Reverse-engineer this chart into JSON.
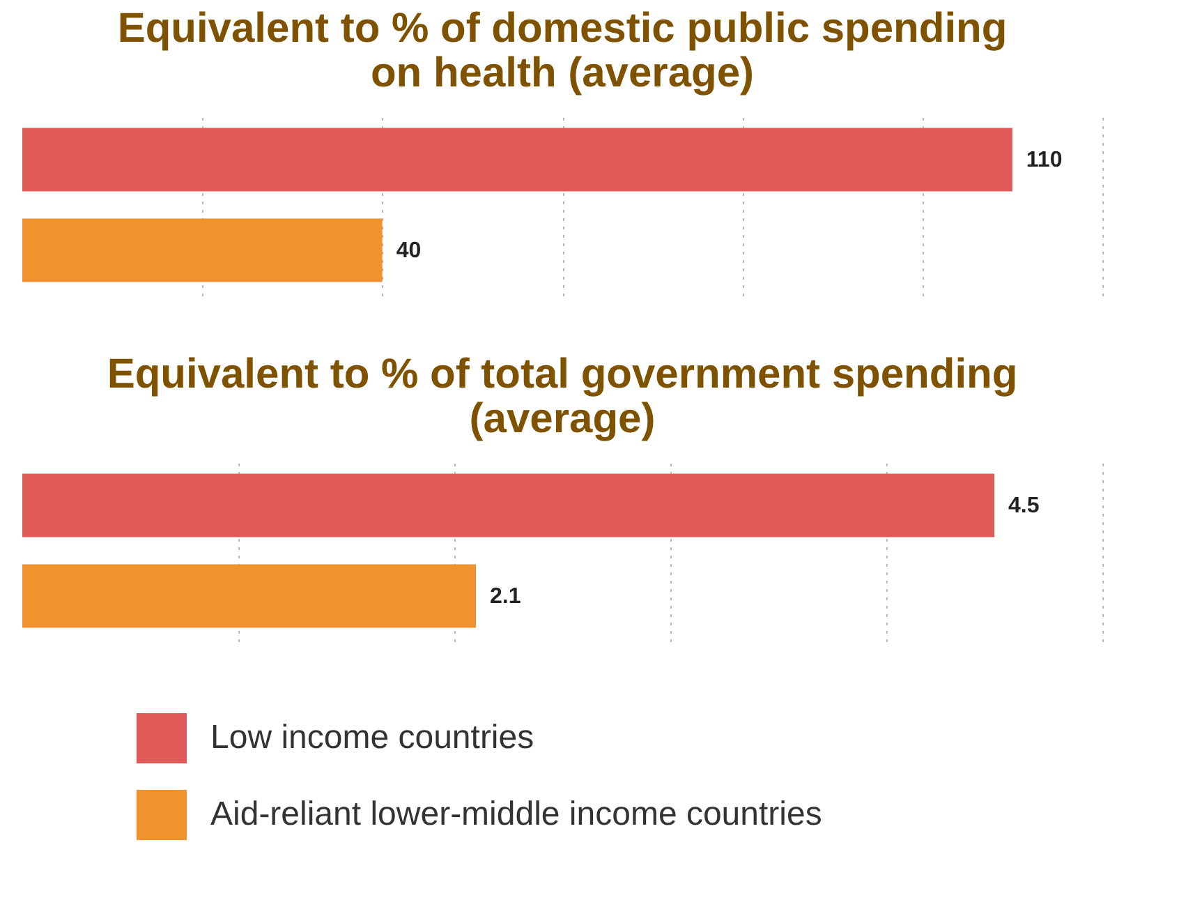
{
  "chart_data": [
    {
      "type": "bar",
      "orientation": "horizontal",
      "title": "Equivalent to % of domestic public spending on health (average)",
      "categories": [
        null
      ],
      "series": [
        {
          "name": "Low income countries",
          "color": "#e05a5a",
          "values": [
            110
          ]
        },
        {
          "name": "Aid-reliant lower-middle income countries",
          "color": "#f0922e",
          "values": [
            40
          ]
        }
      ],
      "xlim": [
        0,
        120
      ],
      "xticks": [
        {
          "value": 20,
          "label": null
        },
        {
          "value": 40,
          "label": null
        },
        {
          "value": 60,
          "label": null
        },
        {
          "value": 80,
          "label": null
        },
        {
          "value": 100,
          "label": null
        },
        {
          "value": 120,
          "label": null
        }
      ],
      "grid": "x",
      "tick_labels": false,
      "data_labels": true,
      "legend": "bottom"
    },
    {
      "type": "bar",
      "orientation": "horizontal",
      "title": "Equivalent to % of total government spending (average)",
      "categories": [
        null
      ],
      "series": [
        {
          "name": "Low income countries",
          "color": "#e05a5a",
          "values": [
            4.5
          ]
        },
        {
          "name": "Aid-reliant lower-middle income countries",
          "color": "#f0922e",
          "values": [
            2.1
          ]
        }
      ],
      "xlim": [
        0,
        5
      ],
      "xticks": [
        {
          "value": 1,
          "label": null
        },
        {
          "value": 2,
          "label": null
        },
        {
          "value": 3,
          "label": null
        },
        {
          "value": 4,
          "label": null
        },
        {
          "value": 5,
          "label": null
        }
      ],
      "grid": "x",
      "tick_labels": false,
      "data_labels": true,
      "legend": "bottom"
    }
  ]
}
